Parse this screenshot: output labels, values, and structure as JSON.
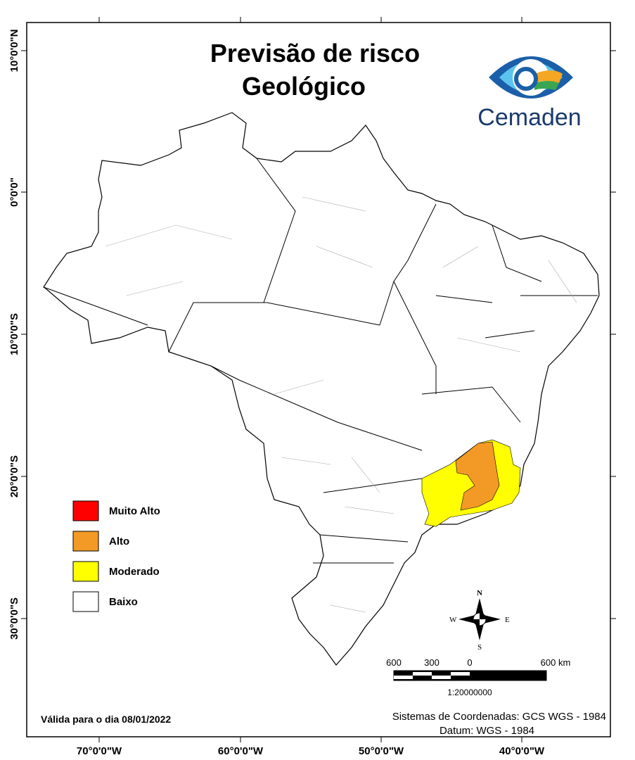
{
  "title": [
    "Previsão de risco",
    "Geológico"
  ],
  "logo": {
    "text": "Cemaden"
  },
  "longitude_labels": [
    "70°0'0\"W",
    "60°0'0\"W",
    "50°0'0\"W",
    "40°0'0\"W"
  ],
  "latitude_labels": [
    "10°0'0\"N",
    "0°0'0\"",
    "10°0'0\"S",
    "20°0'0\"S",
    "30°0'0\"S"
  ],
  "legend": [
    {
      "label": "Muito Alto",
      "color": "#ff0000"
    },
    {
      "label": "Alto",
      "color": "#f39a26"
    },
    {
      "label": "Moderado",
      "color": "#ffff00"
    },
    {
      "label": "Baixo",
      "color": "#ffffff"
    }
  ],
  "compass": {
    "n": "N",
    "s": "S",
    "e": "E",
    "w": "W"
  },
  "scale": {
    "labels": [
      "600",
      "300",
      "0",
      "600 km"
    ],
    "ratio": "1:20000000"
  },
  "validity": "Válida para o dia 08/01/2022",
  "coordinates": [
    "Sistemas de Coordenadas: GCS WGS - 1984",
    "Datum: WGS - 1984"
  ]
}
